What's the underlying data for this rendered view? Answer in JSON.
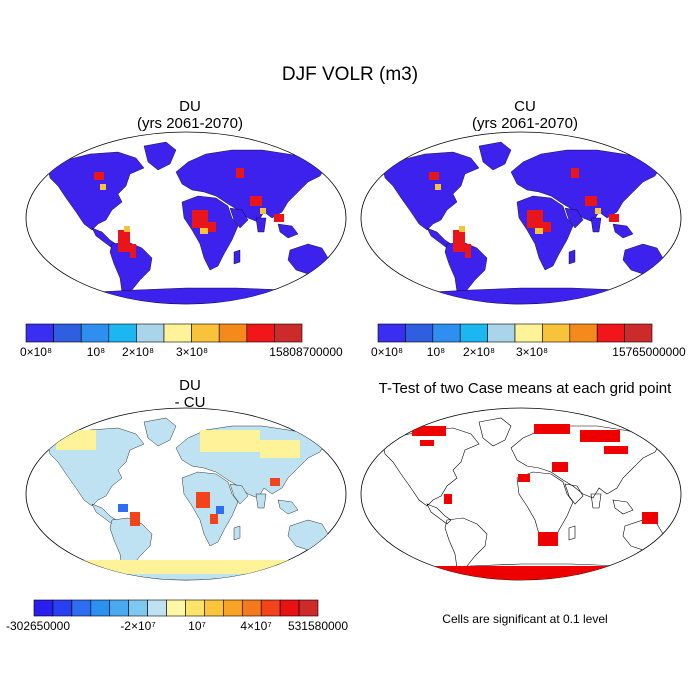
{
  "main_title": "DJF VOLR (m3)",
  "panels": {
    "du": {
      "title": "DU",
      "subtitle": "(yrs 2061-2070)"
    },
    "cu": {
      "title": "CU",
      "subtitle": "(yrs 2061-2070)"
    },
    "diff": {
      "title": "DU",
      "subtitle": "- CU"
    },
    "ttest": {
      "title": "T-Test of two Case means at each grid point",
      "note": "Cells are significant at 0.1 level"
    }
  },
  "colorbars": {
    "du": {
      "colors": [
        "#3a2ff0",
        "#2f5fe0",
        "#2e8ff0",
        "#1cb7f0",
        "#a9d4ea",
        "#fff39a",
        "#f8c33a",
        "#f58a1c",
        "#f0161a",
        "#cc2b2b"
      ],
      "labels": [
        "0×10⁸",
        "10⁸",
        "2×10⁸",
        "3×10⁸",
        "15808700000"
      ]
    },
    "cu": {
      "colors": [
        "#3a2ff0",
        "#2f5fe0",
        "#2e8ff0",
        "#1cb7f0",
        "#a9d4ea",
        "#fff39a",
        "#f8c33a",
        "#f58a1c",
        "#f0161a",
        "#cc2b2b"
      ],
      "labels": [
        "0×10⁸",
        "10⁸",
        "2×10⁸",
        "3×10⁸",
        "15765000000"
      ]
    },
    "diff": {
      "colors": [
        "#2a1ef0",
        "#2a3ff0",
        "#2f6ef0",
        "#2d8ff0",
        "#4aaaf0",
        "#7ec8f0",
        "#bfe2f2",
        "#fff7a8",
        "#ffe36a",
        "#fcc43a",
        "#f9a326",
        "#f57a1c",
        "#f2441a",
        "#e81212",
        "#cf2a2a"
      ],
      "labels": [
        "-302650000",
        "-2×10⁷",
        "10⁷",
        "4×10⁷",
        "531580000"
      ]
    }
  }
}
